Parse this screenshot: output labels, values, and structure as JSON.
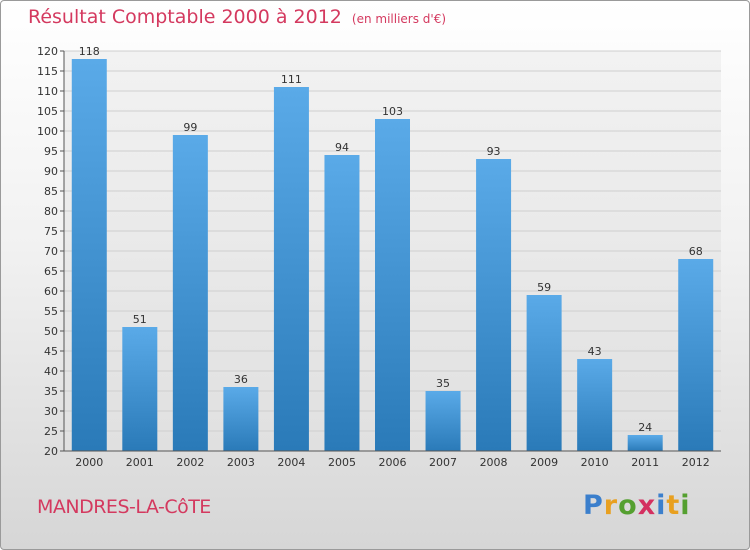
{
  "chart_data": {
    "type": "bar",
    "title": "Résultat Comptable 2000 à 2012",
    "unit_label": "(en milliers d'€)",
    "categories": [
      "2000",
      "2001",
      "2002",
      "2003",
      "2004",
      "2005",
      "2006",
      "2007",
      "2008",
      "2009",
      "2010",
      "2011",
      "2012"
    ],
    "values": [
      118,
      51,
      99,
      36,
      111,
      94,
      103,
      35,
      93,
      59,
      43,
      24,
      68
    ],
    "ylim": [
      20,
      120
    ],
    "ytick_step": 5,
    "xlabel": "",
    "ylabel": "",
    "grid": true,
    "bar_color_top": "#5aaae8",
    "bar_color_bottom": "#2a7ab8"
  },
  "footer": {
    "city": "MANDRES-LA-CôTE",
    "logo_letters": [
      "P",
      "r",
      "o",
      "x",
      "i",
      "t",
      "i"
    ],
    "logo_colors": [
      "#3b7fcc",
      "#e8a020",
      "#55a030",
      "#d43060",
      "#3b7fcc",
      "#e8a020",
      "#55a030"
    ]
  }
}
